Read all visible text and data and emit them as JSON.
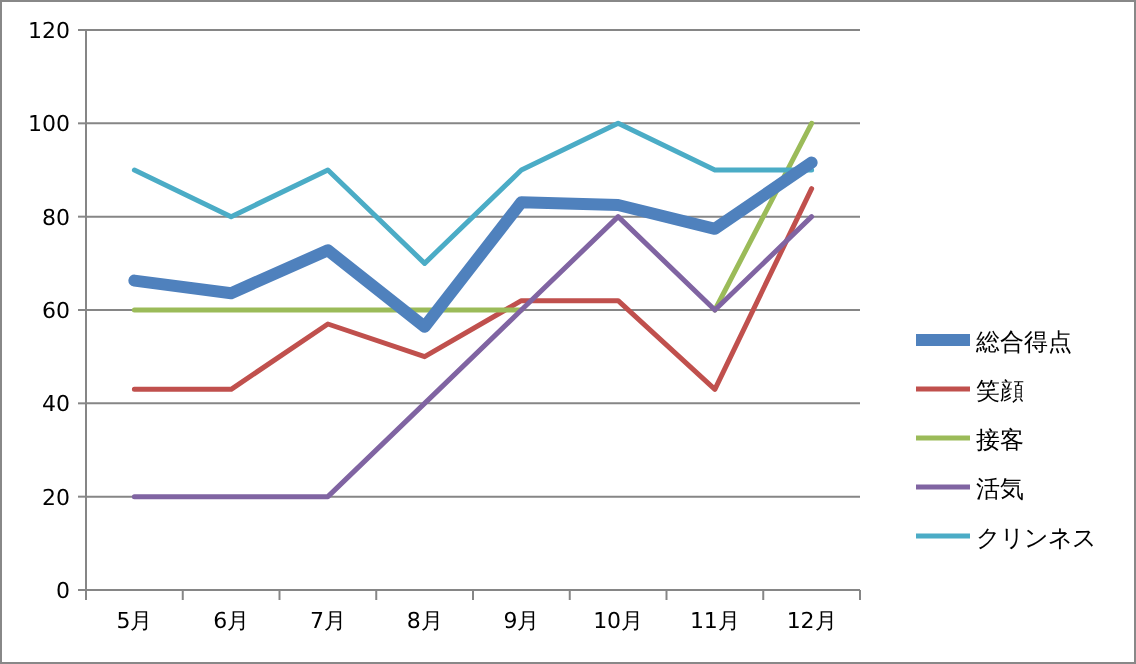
{
  "chart_data": {
    "type": "line",
    "categories": [
      "5月",
      "6月",
      "7月",
      "8月",
      "9月",
      "10月",
      "11月",
      "12月"
    ],
    "series": [
      {
        "name": "総合得点",
        "color": "#4f81bd",
        "values": [
          66.3,
          63.6,
          72.8,
          56.4,
          83.1,
          82.5,
          77.4,
          91.6
        ]
      },
      {
        "name": "笑顔",
        "color": "#c0504d",
        "values": [
          43,
          43,
          57,
          50,
          62,
          62,
          43,
          86
        ]
      },
      {
        "name": "接客",
        "color": "#9bbb59",
        "values": [
          60,
          60,
          60,
          60,
          60,
          null,
          60,
          100
        ]
      },
      {
        "name": "活気",
        "color": "#8064a2",
        "values": [
          20,
          20,
          20,
          40,
          60,
          80,
          60,
          80
        ]
      },
      {
        "name": "クリンネス",
        "color": "#4bacc6",
        "values": [
          90,
          80,
          90,
          70,
          90,
          100,
          90,
          90
        ]
      }
    ],
    "ylim": [
      0,
      120
    ],
    "yticks": [
      0,
      20,
      40,
      60,
      80,
      100,
      120
    ],
    "grid": "y",
    "legend": "right"
  }
}
